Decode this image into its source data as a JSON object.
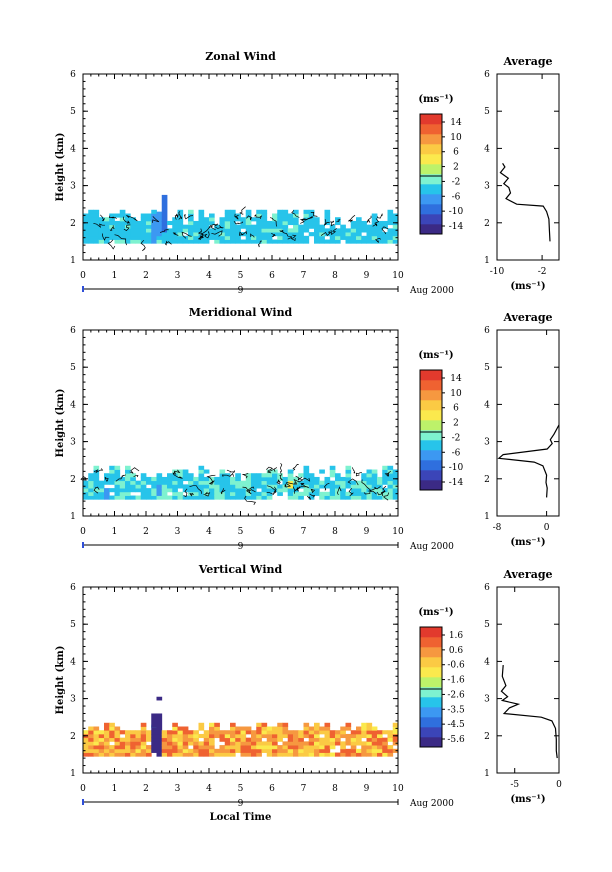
{
  "figure": {
    "xlabel": "Local Time",
    "date_label": "Aug 2000",
    "day_label": "9"
  },
  "chart_data": [
    {
      "type": "heatmap",
      "title": "Zonal Wind",
      "ylabel": "Height (km)",
      "xlim": [
        0,
        10
      ],
      "ylim": [
        1,
        6
      ],
      "x_ticks": [
        "0",
        "1",
        "2",
        "3",
        "4",
        "5",
        "6",
        "7",
        "8",
        "9",
        "10"
      ],
      "y_ticks": [
        "1",
        "2",
        "3",
        "4",
        "5",
        "6"
      ],
      "colorbar": {
        "unit": "(ms⁻¹)",
        "ticks": [
          "14",
          "10",
          "6",
          "2",
          "-2",
          "-6",
          "-10",
          "-14"
        ],
        "range": [
          -16,
          16
        ]
      },
      "field": {
        "base_value": -3.5,
        "y_bottom": 1.45,
        "y_top_range": [
          1.9,
          2.35
        ],
        "anomalies": [
          {
            "x": [
              2.1,
              2.35
            ],
            "y": [
              1.45,
              2.2
            ],
            "value": -7
          },
          {
            "x": [
              2.5,
              2.65
            ],
            "y": [
              1.8,
              2.75
            ],
            "value": -9
          },
          {
            "x": [
              2.4,
              2.55
            ],
            "y": [
              1.7,
              2.3
            ],
            "value": -6
          }
        ]
      },
      "average": {
        "title": "Average",
        "xlabel": "(ms⁻¹)",
        "xlim": [
          -10,
          1
        ],
        "x_ticks": [
          "-10",
          "-2"
        ],
        "profile": [
          [
            1.5,
            -0.6
          ],
          [
            1.8,
            -0.7
          ],
          [
            2.1,
            -0.8
          ],
          [
            2.3,
            -1.2
          ],
          [
            2.45,
            -1.8
          ],
          [
            2.5,
            -6.5
          ],
          [
            2.65,
            -8.4
          ],
          [
            2.8,
            -7.6
          ],
          [
            2.95,
            -7.9
          ],
          [
            3.05,
            -8.8
          ],
          [
            3.2,
            -8.0
          ],
          [
            3.35,
            -9.4
          ],
          [
            3.5,
            -8.6
          ],
          [
            3.6,
            -9.0
          ]
        ]
      }
    },
    {
      "type": "heatmap",
      "title": "Meridional Wind",
      "ylabel": "Height (km)",
      "xlim": [
        0,
        10
      ],
      "ylim": [
        1,
        6
      ],
      "x_ticks": [
        "0",
        "1",
        "2",
        "3",
        "4",
        "5",
        "6",
        "7",
        "8",
        "9",
        "10"
      ],
      "y_ticks": [
        "1",
        "2",
        "3",
        "4",
        "5",
        "6"
      ],
      "colorbar": {
        "unit": "(ms⁻¹)",
        "ticks": [
          "14",
          "10",
          "6",
          "2",
          "-2",
          "-6",
          "-10",
          "-14"
        ],
        "range": [
          -16,
          16
        ]
      },
      "field": {
        "base_value": -3.0,
        "y_bottom": 1.45,
        "y_top_range": [
          1.9,
          2.3
        ],
        "anomalies": [
          {
            "x": [
              0.65,
              0.8
            ],
            "y": [
              1.45,
              1.75
            ],
            "value": -8
          },
          {
            "x": [
              2.4,
              2.55
            ],
            "y": [
              1.6,
              1.9
            ],
            "value": -6
          },
          {
            "x": [
              6.55,
              6.7
            ],
            "y": [
              1.75,
              2.0
            ],
            "value": 5
          }
        ]
      },
      "average": {
        "title": "Average",
        "xlabel": "(ms⁻¹)",
        "xlim": [
          -8,
          2
        ],
        "x_ticks": [
          "-8",
          "0"
        ],
        "profile": [
          [
            1.5,
            0.0
          ],
          [
            1.75,
            0.1
          ],
          [
            1.9,
            -0.1
          ],
          [
            2.1,
            0.0
          ],
          [
            2.35,
            -0.6
          ],
          [
            2.45,
            -2.0
          ],
          [
            2.55,
            -7.7
          ],
          [
            2.65,
            -7.0
          ],
          [
            2.8,
            0.1
          ],
          [
            2.95,
            0.9
          ],
          [
            3.05,
            0.6
          ],
          [
            3.2,
            1.2
          ],
          [
            3.45,
            2.0
          ]
        ]
      }
    },
    {
      "type": "heatmap",
      "title": "Vertical Wind",
      "ylabel": "Height (km)",
      "xlim": [
        0,
        10
      ],
      "ylim": [
        1,
        6
      ],
      "x_ticks": [
        "0",
        "1",
        "2",
        "3",
        "4",
        "5",
        "6",
        "7",
        "8",
        "9",
        "10"
      ],
      "y_ticks": [
        "1",
        "2",
        "3",
        "4",
        "5",
        "6"
      ],
      "colorbar": {
        "unit": "(ms⁻¹)",
        "ticks": [
          "1.6",
          "0.6",
          "-0.6",
          "-1.6",
          "-2.6",
          "-3.5",
          "-4.5",
          "-5.6"
        ],
        "range": [
          -6.0,
          2.0
        ]
      },
      "field": {
        "base_value": 0.2,
        "y_bottom": 1.45,
        "y_top_range": [
          2.05,
          2.35
        ],
        "anomalies": [
          {
            "x": [
              2.15,
              2.25
            ],
            "y": [
              1.45,
              2.3
            ],
            "value": -3.2
          },
          {
            "x": [
              2.25,
              2.45
            ],
            "y": [
              1.45,
              2.6
            ],
            "value": -5.8
          },
          {
            "x": [
              2.45,
              2.55
            ],
            "y": [
              1.45,
              2.3
            ],
            "value": -2.2
          },
          {
            "x": [
              2.4,
              2.55
            ],
            "y": [
              2.95,
              3.05
            ],
            "value": -5.8
          }
        ]
      },
      "average": {
        "title": "Average",
        "xlabel": "(ms⁻¹)",
        "xlim": [
          -7,
          0
        ],
        "x_ticks": [
          "-5",
          "0"
        ],
        "profile": [
          [
            1.4,
            -0.2
          ],
          [
            1.6,
            -0.3
          ],
          [
            1.9,
            -0.3
          ],
          [
            2.2,
            -0.4
          ],
          [
            2.4,
            -0.8
          ],
          [
            2.5,
            -2.0
          ],
          [
            2.6,
            -6.2
          ],
          [
            2.75,
            -5.6
          ],
          [
            2.85,
            -4.6
          ],
          [
            2.95,
            -6.4
          ],
          [
            3.05,
            -5.8
          ],
          [
            3.2,
            -6.5
          ],
          [
            3.35,
            -6.0
          ],
          [
            3.6,
            -6.4
          ],
          [
            3.9,
            -6.3
          ]
        ]
      }
    }
  ]
}
